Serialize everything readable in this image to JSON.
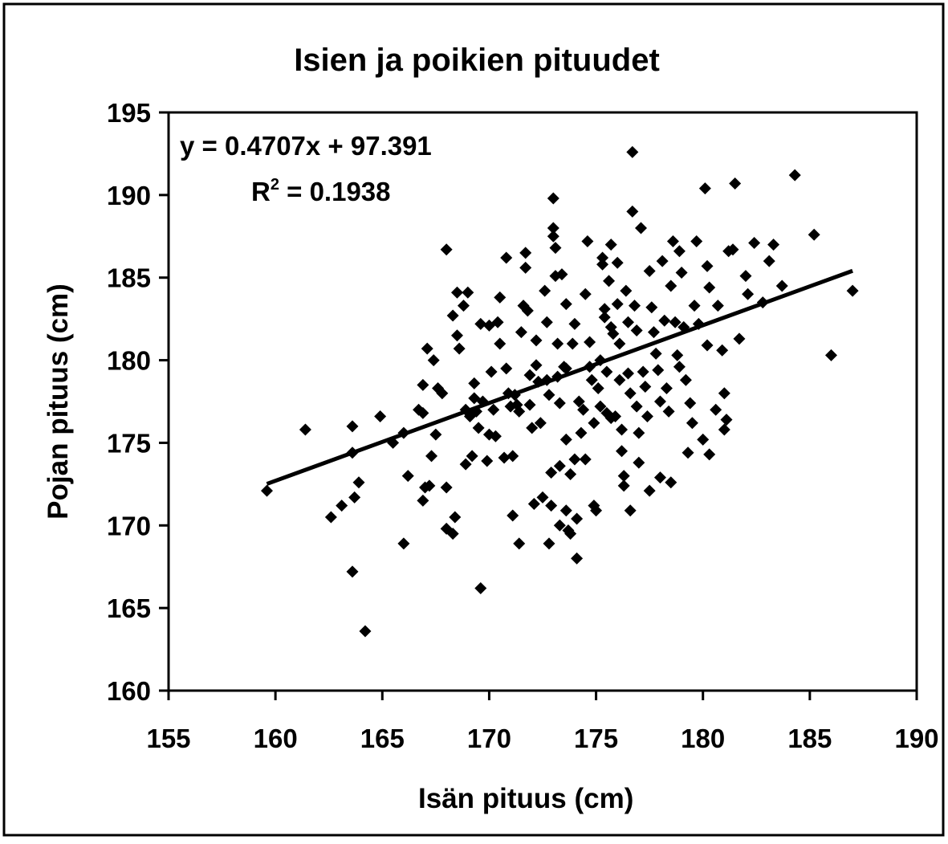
{
  "chart_data": {
    "type": "scatter",
    "title": "Isien ja poikien pituudet",
    "xlabel": "Isän pituus (cm)",
    "ylabel": "Pojan pituus (cm)",
    "xlim": [
      155,
      190
    ],
    "ylim": [
      160,
      195
    ],
    "xticks": [
      155,
      160,
      165,
      170,
      175,
      180,
      185,
      190
    ],
    "yticks": [
      160,
      165,
      170,
      175,
      180,
      185,
      190,
      195
    ],
    "grid": false,
    "legend": "none",
    "marker_color": "#000000",
    "trendline": {
      "slope": 0.4707,
      "intercept": 97.391,
      "x_range": [
        159.6,
        187.0
      ]
    },
    "annotations": {
      "equation": "y = 0.4707x + 97.391",
      "r2_prefix": "R",
      "r2_sup": "2",
      "r2_value": " = 0.1938"
    },
    "series": [
      {
        "points": [
          [
            159.6,
            172.1
          ],
          [
            161.4,
            175.8
          ],
          [
            162.6,
            170.5
          ],
          [
            163.1,
            171.2
          ],
          [
            163.6,
            176.0
          ],
          [
            163.6,
            174.4
          ],
          [
            163.7,
            171.7
          ],
          [
            163.9,
            172.6
          ],
          [
            163.6,
            167.2
          ],
          [
            164.2,
            163.6
          ],
          [
            164.9,
            176.6
          ],
          [
            165.5,
            175.0
          ],
          [
            166.0,
            175.6
          ],
          [
            166.0,
            168.9
          ],
          [
            166.2,
            173.0
          ],
          [
            166.7,
            177.0
          ],
          [
            166.9,
            176.8
          ],
          [
            167.0,
            172.3
          ],
          [
            167.2,
            172.4
          ],
          [
            166.9,
            171.5
          ],
          [
            166.9,
            178.5
          ],
          [
            167.1,
            180.7
          ],
          [
            167.3,
            174.2
          ],
          [
            167.4,
            180.0
          ],
          [
            167.5,
            175.5
          ],
          [
            167.6,
            178.3
          ],
          [
            167.8,
            178.0
          ],
          [
            168.0,
            172.3
          ],
          [
            168.0,
            169.8
          ],
          [
            168.3,
            169.5
          ],
          [
            168.4,
            170.5
          ],
          [
            168.0,
            186.7
          ],
          [
            168.3,
            182.7
          ],
          [
            168.5,
            184.1
          ],
          [
            168.5,
            181.5
          ],
          [
            168.6,
            180.7
          ],
          [
            168.8,
            183.3
          ],
          [
            168.9,
            177.0
          ],
          [
            168.9,
            173.7
          ],
          [
            169.0,
            184.1
          ],
          [
            169.1,
            176.6
          ],
          [
            169.2,
            174.2
          ],
          [
            169.3,
            177.7
          ],
          [
            169.4,
            176.9
          ],
          [
            169.5,
            175.9
          ],
          [
            169.7,
            177.5
          ],
          [
            169.6,
            182.2
          ],
          [
            169.6,
            166.2
          ],
          [
            169.9,
            173.9
          ],
          [
            170.0,
            182.1
          ],
          [
            170.0,
            175.5
          ],
          [
            170.1,
            179.3
          ],
          [
            170.2,
            177.0
          ],
          [
            170.3,
            175.4
          ],
          [
            170.4,
            182.3
          ],
          [
            170.5,
            183.8
          ],
          [
            170.5,
            181.0
          ],
          [
            170.7,
            174.1
          ],
          [
            170.8,
            186.2
          ],
          [
            170.8,
            179.5
          ],
          [
            170.9,
            178.0
          ],
          [
            171.0,
            177.2
          ],
          [
            171.1,
            174.2
          ],
          [
            171.1,
            170.6
          ],
          [
            171.2,
            177.9
          ],
          [
            171.3,
            177.3
          ],
          [
            171.4,
            176.9
          ],
          [
            171.4,
            168.9
          ],
          [
            171.5,
            181.7
          ],
          [
            171.6,
            183.3
          ],
          [
            171.7,
            185.6
          ],
          [
            171.7,
            186.5
          ],
          [
            171.8,
            183.0
          ],
          [
            171.9,
            179.1
          ],
          [
            172.0,
            175.9
          ],
          [
            172.1,
            171.3
          ],
          [
            172.2,
            181.2
          ],
          [
            172.2,
            179.7
          ],
          [
            172.3,
            178.7
          ],
          [
            172.4,
            176.2
          ],
          [
            172.5,
            171.7
          ],
          [
            172.6,
            184.2
          ],
          [
            172.7,
            182.3
          ],
          [
            172.7,
            178.8
          ],
          [
            172.8,
            177.9
          ],
          [
            172.8,
            168.9
          ],
          [
            172.9,
            173.2
          ],
          [
            172.9,
            171.2
          ],
          [
            173.0,
            189.8
          ],
          [
            173.0,
            188.0
          ],
          [
            173.0,
            187.5
          ],
          [
            173.1,
            186.8
          ],
          [
            173.1,
            185.1
          ],
          [
            173.2,
            181.0
          ],
          [
            173.2,
            179.0
          ],
          [
            173.3,
            177.4
          ],
          [
            173.3,
            173.6
          ],
          [
            173.3,
            170.0
          ],
          [
            173.4,
            185.2
          ],
          [
            173.5,
            179.6
          ],
          [
            173.6,
            183.4
          ],
          [
            173.6,
            175.2
          ],
          [
            173.6,
            170.9
          ],
          [
            173.7,
            169.7
          ],
          [
            173.8,
            173.1
          ],
          [
            173.8,
            169.5
          ],
          [
            173.9,
            181.0
          ],
          [
            174.0,
            182.2
          ],
          [
            174.0,
            174.0
          ],
          [
            174.1,
            170.4
          ],
          [
            174.1,
            168.0
          ],
          [
            174.2,
            177.5
          ],
          [
            174.3,
            175.6
          ],
          [
            174.4,
            177.0
          ],
          [
            174.5,
            174.0
          ],
          [
            174.5,
            184.0
          ],
          [
            174.6,
            187.2
          ],
          [
            174.7,
            181.1
          ],
          [
            174.7,
            179.6
          ],
          [
            174.8,
            178.8
          ],
          [
            174.9,
            176.2
          ],
          [
            174.9,
            171.2
          ],
          [
            175.0,
            170.9
          ],
          [
            175.1,
            178.3
          ],
          [
            175.2,
            180.0
          ],
          [
            175.2,
            177.2
          ],
          [
            175.3,
            186.2
          ],
          [
            175.3,
            185.8
          ],
          [
            175.4,
            183.1
          ],
          [
            175.4,
            182.6
          ],
          [
            175.5,
            179.3
          ],
          [
            175.5,
            176.8
          ],
          [
            175.6,
            184.8
          ],
          [
            175.7,
            187.0
          ],
          [
            175.7,
            182.0
          ],
          [
            175.8,
            181.6
          ],
          [
            175.9,
            176.6
          ],
          [
            176.0,
            185.9
          ],
          [
            176.0,
            183.4
          ],
          [
            176.1,
            181.0
          ],
          [
            176.1,
            178.8
          ],
          [
            176.2,
            175.8
          ],
          [
            176.2,
            174.5
          ],
          [
            176.3,
            173.0
          ],
          [
            176.3,
            172.4
          ],
          [
            176.4,
            184.2
          ],
          [
            176.5,
            182.3
          ],
          [
            176.5,
            179.2
          ],
          [
            176.6,
            178.0
          ],
          [
            176.6,
            170.9
          ],
          [
            176.7,
            192.6
          ],
          [
            176.7,
            189.0
          ],
          [
            176.8,
            183.3
          ],
          [
            176.9,
            181.8
          ],
          [
            176.9,
            177.2
          ],
          [
            177.0,
            175.6
          ],
          [
            177.0,
            173.8
          ],
          [
            177.1,
            188.0
          ],
          [
            177.2,
            179.3
          ],
          [
            177.3,
            178.4
          ],
          [
            177.4,
            176.6
          ],
          [
            177.5,
            172.1
          ],
          [
            177.5,
            185.4
          ],
          [
            177.6,
            183.2
          ],
          [
            177.7,
            181.7
          ],
          [
            177.8,
            180.4
          ],
          [
            177.9,
            179.4
          ],
          [
            178.0,
            177.5
          ],
          [
            178.0,
            172.9
          ],
          [
            178.1,
            186.0
          ],
          [
            178.2,
            182.4
          ],
          [
            178.3,
            178.3
          ],
          [
            178.4,
            176.9
          ],
          [
            178.5,
            172.6
          ],
          [
            178.5,
            184.5
          ],
          [
            178.6,
            187.2
          ],
          [
            178.7,
            182.3
          ],
          [
            178.8,
            180.3
          ],
          [
            178.9,
            186.6
          ],
          [
            179.0,
            185.3
          ],
          [
            179.1,
            182.0
          ],
          [
            179.2,
            178.8
          ],
          [
            179.3,
            174.4
          ],
          [
            179.4,
            177.4
          ],
          [
            179.5,
            176.2
          ],
          [
            179.6,
            183.3
          ],
          [
            179.7,
            187.2
          ],
          [
            179.8,
            182.2
          ],
          [
            180.0,
            175.2
          ],
          [
            180.1,
            190.4
          ],
          [
            180.2,
            185.7
          ],
          [
            180.3,
            184.4
          ],
          [
            180.2,
            180.9
          ],
          [
            180.3,
            174.3
          ],
          [
            180.6,
            177.0
          ],
          [
            180.7,
            183.3
          ],
          [
            180.9,
            180.6
          ],
          [
            181.0,
            178.0
          ],
          [
            181.1,
            176.4
          ],
          [
            181.0,
            175.8
          ],
          [
            181.2,
            186.6
          ],
          [
            181.4,
            186.7
          ],
          [
            181.5,
            190.7
          ],
          [
            181.7,
            181.3
          ],
          [
            182.0,
            185.1
          ],
          [
            182.1,
            184.0
          ],
          [
            182.4,
            187.1
          ],
          [
            182.8,
            183.5
          ],
          [
            183.1,
            186.0
          ],
          [
            183.3,
            187.0
          ],
          [
            183.7,
            184.5
          ],
          [
            184.3,
            191.2
          ],
          [
            185.2,
            187.6
          ],
          [
            186.0,
            180.3
          ],
          [
            187.0,
            184.2
          ],
          [
            169.3,
            178.6
          ],
          [
            171.9,
            177.3
          ],
          [
            173.6,
            179.5
          ],
          [
            175.7,
            176.5
          ],
          [
            178.9,
            179.6
          ]
        ]
      }
    ]
  }
}
